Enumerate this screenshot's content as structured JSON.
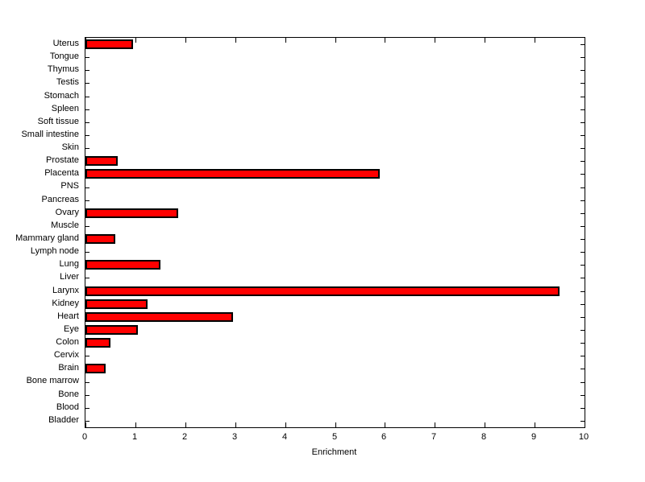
{
  "figure": {
    "background_color": "#FFFFFF"
  },
  "chart_data": {
    "type": "bar",
    "orientation": "horizontal",
    "title": "",
    "xlabel": "Enrichment",
    "ylabel": "",
    "xlim": [
      0,
      10
    ],
    "xticks": [
      0,
      1,
      2,
      3,
      4,
      5,
      6,
      7,
      8,
      9,
      10
    ],
    "grid": false,
    "legend": null,
    "bar_color": "#FF0000",
    "bar_edge_color": "#000000",
    "axis_color": "#000000",
    "categories_top_to_bottom": [
      "Uterus",
      "Tongue",
      "Thymus",
      "Testis",
      "Stomach",
      "Spleen",
      "Soft tissue",
      "Small intestine",
      "Skin",
      "Prostate",
      "Placenta",
      "PNS",
      "Pancreas",
      "Ovary",
      "Muscle",
      "Mammary gland",
      "Lymph node",
      "Lung",
      "Liver",
      "Larynx",
      "Kidney",
      "Heart",
      "Eye",
      "Colon",
      "Cervix",
      "Brain",
      "Bone marrow",
      "Bone",
      "Blood",
      "Bladder"
    ],
    "values": [
      0.95,
      0,
      0,
      0,
      0,
      0,
      0,
      0,
      0,
      0.65,
      5.9,
      0,
      0,
      1.85,
      0,
      0.6,
      0,
      1.5,
      0,
      9.5,
      1.25,
      2.95,
      1.05,
      0.5,
      0,
      0.4,
      0,
      0,
      0,
      0
    ]
  }
}
